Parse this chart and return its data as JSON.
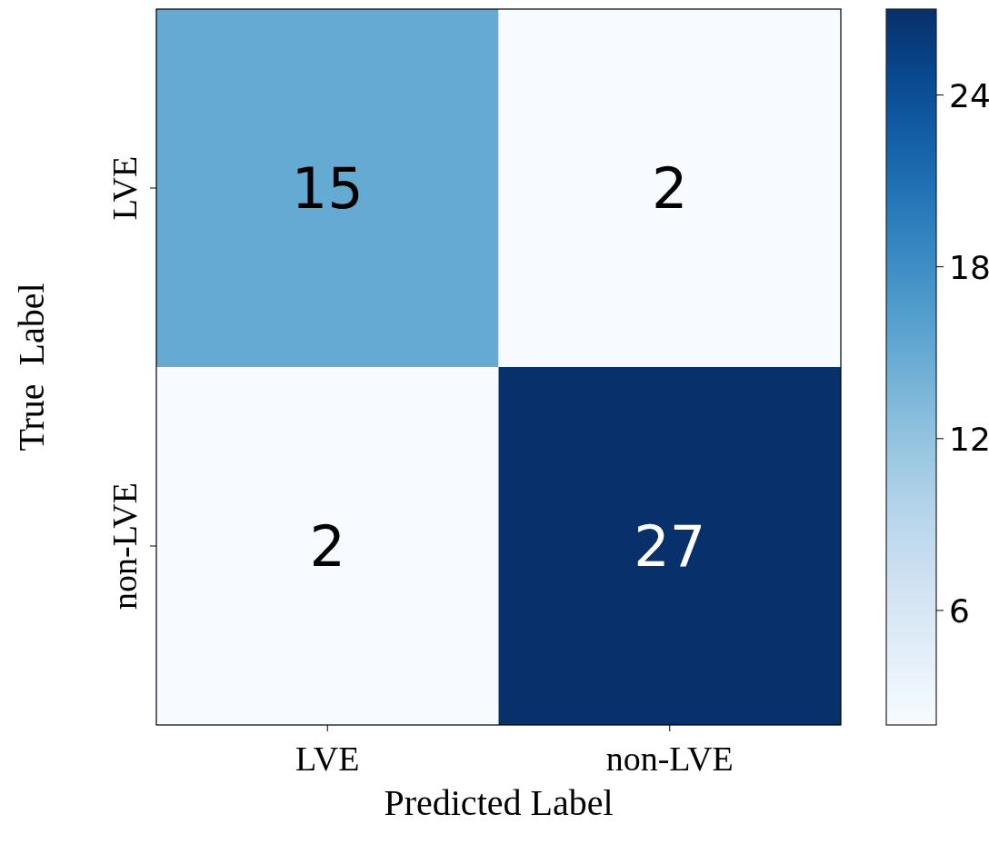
{
  "chart_data": {
    "type": "heatmap",
    "xlabel": "Predicted  Label",
    "ylabel": "True  Label",
    "categories": [
      "LVE",
      "non-LVE"
    ],
    "y_categories": [
      "LVE",
      "non-LVE"
    ],
    "cells": [
      [
        15,
        2
      ],
      [
        2,
        27
      ]
    ],
    "clim": [
      2,
      27
    ],
    "cticks": [
      6,
      12,
      18,
      24
    ],
    "data_labels": true
  }
}
